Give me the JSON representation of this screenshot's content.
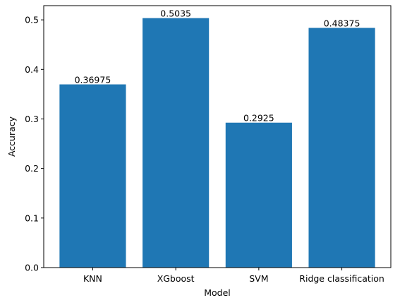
{
  "chart_data": {
    "type": "bar",
    "title": "",
    "xlabel": "Model",
    "ylabel": "Accuracy",
    "categories": [
      "KNN",
      "XGboost",
      "SVM",
      "Ridge classification"
    ],
    "values": [
      0.36975,
      0.5035,
      0.2925,
      0.48375
    ],
    "value_labels": [
      "0.36975",
      "0.5035",
      "0.2925",
      "0.48375"
    ],
    "ylim": [
      0,
      0.528675
    ],
    "yticks": [
      0.0,
      0.1,
      0.2,
      0.3,
      0.4,
      0.5
    ],
    "ytick_labels": [
      "0.0",
      "0.1",
      "0.2",
      "0.3",
      "0.4",
      "0.5"
    ],
    "bar_color": "#1f77b4",
    "grid": false,
    "legend": "none"
  }
}
